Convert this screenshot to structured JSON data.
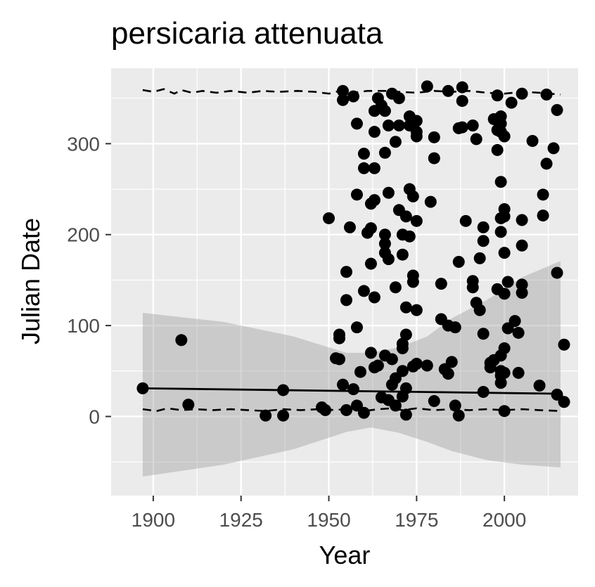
{
  "chart_data": {
    "type": "scatter",
    "title": "persicaria attenuata",
    "xlabel": "Year",
    "ylabel": "Julian Date",
    "xlim": [
      1888,
      2021
    ],
    "ylim": [
      -87,
      383
    ],
    "x_ticks": [
      1900,
      1925,
      1950,
      1975,
      2000
    ],
    "x_tick_labels": [
      "1900",
      "1925",
      "1950",
      "1975",
      "2000"
    ],
    "y_ticks": [
      0,
      100,
      200,
      300
    ],
    "y_tick_labels": [
      "0",
      "100",
      "200",
      "300"
    ],
    "grid": true,
    "background": "#ebebeb",
    "point_color": "#000000",
    "points": [
      [
        1897,
        31
      ],
      [
        1908,
        84
      ],
      [
        1910,
        13
      ],
      [
        1932,
        1
      ],
      [
        1937,
        1
      ],
      [
        1937,
        29
      ],
      [
        1948,
        10
      ],
      [
        1949,
        7
      ],
      [
        1950,
        218
      ],
      [
        1952,
        64
      ],
      [
        1953,
        63
      ],
      [
        1953,
        90
      ],
      [
        1953,
        86
      ],
      [
        1954,
        35
      ],
      [
        1954,
        348
      ],
      [
        1954,
        358
      ],
      [
        1955,
        7
      ],
      [
        1955,
        159
      ],
      [
        1955,
        128
      ],
      [
        1956,
        208
      ],
      [
        1957,
        30
      ],
      [
        1957,
        352
      ],
      [
        1958,
        12
      ],
      [
        1958,
        98
      ],
      [
        1958,
        322
      ],
      [
        1958,
        244
      ],
      [
        1959,
        49
      ],
      [
        1960,
        4
      ],
      [
        1960,
        289
      ],
      [
        1960,
        273
      ],
      [
        1960,
        138
      ],
      [
        1961,
        202
      ],
      [
        1962,
        168
      ],
      [
        1962,
        207
      ],
      [
        1962,
        234
      ],
      [
        1962,
        70
      ],
      [
        1963,
        54
      ],
      [
        1963,
        238
      ],
      [
        1963,
        131
      ],
      [
        1963,
        273
      ],
      [
        1963,
        313
      ],
      [
        1963,
        336
      ],
      [
        1964,
        350
      ],
      [
        1964,
        56
      ],
      [
        1965,
        342
      ],
      [
        1965,
        21
      ],
      [
        1966,
        336
      ],
      [
        1966,
        290
      ],
      [
        1966,
        200
      ],
      [
        1966,
        190
      ],
      [
        1966,
        180
      ],
      [
        1966,
        67
      ],
      [
        1967,
        18
      ],
      [
        1967,
        173
      ],
      [
        1967,
        246
      ],
      [
        1967,
        320
      ],
      [
        1968,
        355
      ],
      [
        1968,
        63
      ],
      [
        1968,
        35
      ],
      [
        1969,
        12
      ],
      [
        1969,
        42
      ],
      [
        1969,
        142
      ],
      [
        1969,
        302
      ],
      [
        1970,
        350
      ],
      [
        1970,
        320
      ],
      [
        1970,
        227
      ],
      [
        1971,
        200
      ],
      [
        1971,
        75
      ],
      [
        1971,
        80
      ],
      [
        1971,
        50
      ],
      [
        1971,
        22
      ],
      [
        1971,
        178
      ],
      [
        1972,
        220
      ],
      [
        1972,
        90
      ],
      [
        1972,
        31
      ],
      [
        1972,
        2
      ],
      [
        1972,
        120
      ],
      [
        1973,
        250
      ],
      [
        1973,
        198
      ],
      [
        1973,
        320
      ],
      [
        1973,
        330
      ],
      [
        1974,
        242
      ],
      [
        1974,
        155
      ],
      [
        1974,
        148
      ],
      [
        1974,
        55
      ],
      [
        1975,
        58
      ],
      [
        1975,
        117
      ],
      [
        1975,
        215
      ],
      [
        1975,
        313
      ],
      [
        1975,
        308
      ],
      [
        1975,
        325
      ],
      [
        1978,
        56
      ],
      [
        1978,
        363
      ],
      [
        1979,
        236
      ],
      [
        1980,
        17
      ],
      [
        1980,
        284
      ],
      [
        1980,
        307
      ],
      [
        1982,
        107
      ],
      [
        1982,
        146
      ],
      [
        1983,
        52
      ],
      [
        1984,
        100
      ],
      [
        1984,
        47
      ],
      [
        1984,
        358
      ],
      [
        1985,
        60
      ],
      [
        1986,
        98
      ],
      [
        1986,
        12
      ],
      [
        1987,
        1
      ],
      [
        1987,
        170
      ],
      [
        1987,
        317
      ],
      [
        1988,
        347
      ],
      [
        1988,
        362
      ],
      [
        1988,
        318
      ],
      [
        1989,
        215
      ],
      [
        1991,
        320
      ],
      [
        1991,
        149
      ],
      [
        1991,
        142
      ],
      [
        1992,
        125
      ],
      [
        1992,
        305
      ],
      [
        1993,
        117
      ],
      [
        1993,
        174
      ],
      [
        1994,
        27
      ],
      [
        1994,
        208
      ],
      [
        1994,
        91
      ],
      [
        1994,
        193
      ],
      [
        1996,
        59
      ],
      [
        1996,
        54
      ],
      [
        1997,
        62
      ],
      [
        1997,
        327
      ],
      [
        1998,
        353
      ],
      [
        1998,
        315
      ],
      [
        1998,
        293
      ],
      [
        1998,
        140
      ],
      [
        1999,
        37
      ],
      [
        1999,
        45
      ],
      [
        1999,
        50
      ],
      [
        1999,
        67
      ],
      [
        1999,
        203
      ],
      [
        1999,
        218
      ],
      [
        1999,
        258
      ],
      [
        1999,
        313
      ],
      [
        1999,
        322
      ],
      [
        1999,
        330
      ],
      [
        2000,
        308
      ],
      [
        2000,
        228
      ],
      [
        2000,
        220
      ],
      [
        2000,
        180
      ],
      [
        2000,
        135
      ],
      [
        2000,
        75
      ],
      [
        2000,
        48
      ],
      [
        2000,
        6
      ],
      [
        2001,
        97
      ],
      [
        2001,
        148
      ],
      [
        2002,
        345
      ],
      [
        2003,
        105
      ],
      [
        2004,
        48
      ],
      [
        2004,
        92
      ],
      [
        2005,
        188
      ],
      [
        2005,
        216
      ],
      [
        2005,
        145
      ],
      [
        2005,
        136
      ],
      [
        2005,
        355
      ],
      [
        2008,
        303
      ],
      [
        2010,
        34
      ],
      [
        2011,
        221
      ],
      [
        2011,
        244
      ],
      [
        2012,
        354
      ],
      [
        2012,
        278
      ],
      [
        2014,
        295
      ],
      [
        2015,
        337
      ],
      [
        2015,
        158
      ],
      [
        2015,
        24
      ],
      [
        2017,
        16
      ],
      [
        2017,
        79
      ]
    ],
    "fit_line": {
      "x": [
        1897,
        2016
      ],
      "y": [
        31,
        25
      ],
      "color": "#000000"
    },
    "confidence_band": {
      "color": "#999999",
      "upper": [
        [
          1897,
          114
        ],
        [
          1920,
          104
        ],
        [
          1940,
          88
        ],
        [
          1955,
          70
        ],
        [
          1962,
          70
        ],
        [
          1970,
          76
        ],
        [
          1978,
          88
        ],
        [
          1985,
          108
        ],
        [
          1995,
          128
        ],
        [
          2005,
          153
        ],
        [
          2016,
          171
        ]
      ],
      "lower": [
        [
          1897,
          -66
        ],
        [
          1920,
          -53
        ],
        [
          1940,
          -36
        ],
        [
          1955,
          -17
        ],
        [
          1962,
          -12
        ],
        [
          1970,
          -18
        ],
        [
          1978,
          -28
        ],
        [
          1985,
          -38
        ],
        [
          1995,
          -48
        ],
        [
          2005,
          -53
        ],
        [
          2016,
          -56
        ]
      ]
    },
    "upper_quantile": {
      "style": "dashed",
      "points": [
        [
          1897,
          359
        ],
        [
          1900,
          357
        ],
        [
          1903,
          360
        ],
        [
          1906,
          355
        ],
        [
          1908,
          359
        ],
        [
          1911,
          356
        ],
        [
          1914,
          358
        ],
        [
          1918,
          356
        ],
        [
          1922,
          358
        ],
        [
          1927,
          356
        ],
        [
          1931,
          358
        ],
        [
          1936,
          357
        ],
        [
          1941,
          358
        ],
        [
          1946,
          357
        ],
        [
          1950,
          355
        ],
        [
          1953,
          358
        ],
        [
          1957,
          356
        ],
        [
          1961,
          358
        ],
        [
          1966,
          358
        ],
        [
          1970,
          357
        ],
        [
          1975,
          356
        ],
        [
          1980,
          358
        ],
        [
          1985,
          357
        ],
        [
          1990,
          358
        ],
        [
          1995,
          356
        ],
        [
          2000,
          355
        ],
        [
          2005,
          357
        ],
        [
          2010,
          356
        ],
        [
          2016,
          354
        ]
      ]
    },
    "lower_quantile": {
      "style": "dashed",
      "points": [
        [
          1897,
          8
        ],
        [
          1901,
          6
        ],
        [
          1904,
          9
        ],
        [
          1908,
          7
        ],
        [
          1912,
          8
        ],
        [
          1917,
          7
        ],
        [
          1922,
          8
        ],
        [
          1927,
          7
        ],
        [
          1932,
          6
        ],
        [
          1937,
          8
        ],
        [
          1942,
          7
        ],
        [
          1947,
          8
        ],
        [
          1952,
          7
        ],
        [
          1956,
          9
        ],
        [
          1960,
          6
        ],
        [
          1964,
          8
        ],
        [
          1968,
          9
        ],
        [
          1971,
          7
        ],
        [
          1975,
          9
        ],
        [
          1980,
          7
        ],
        [
          1985,
          8
        ],
        [
          1990,
          7
        ],
        [
          1995,
          8
        ],
        [
          2000,
          7
        ],
        [
          2005,
          8
        ],
        [
          2010,
          7
        ],
        [
          2016,
          6
        ]
      ]
    }
  }
}
